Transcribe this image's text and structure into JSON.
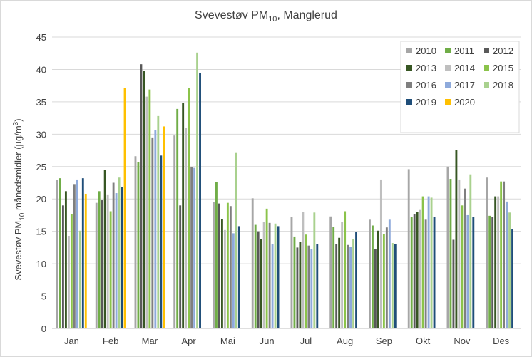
{
  "chart_data": {
    "type": "bar",
    "title": "Svevestøv PM",
    "title_sub": "10",
    "title_suffix": ", Manglerud",
    "ylabel": "Svevestøv PM",
    "ylabel_sub": "10",
    "ylabel_suffix": " månedsmidler (µg/m",
    "ylabel_sup": "3",
    "ylabel_end": ")",
    "xlabel": "",
    "ylim": [
      0,
      45
    ],
    "yticks": [
      0,
      5,
      10,
      15,
      20,
      25,
      30,
      35,
      40,
      45
    ],
    "grid": true,
    "legend_position": "top-right",
    "categories": [
      "Jan",
      "Feb",
      "Mar",
      "Apr",
      "Mai",
      "Jun",
      "Jul",
      "Aug",
      "Sep",
      "Okt",
      "Nov",
      "Des"
    ],
    "series": [
      {
        "name": "2010",
        "color": "#a6a6a6",
        "values": [
          22.9,
          19.4,
          26.6,
          29.8,
          19.5,
          20.1,
          17.2,
          17.3,
          16.8,
          24.6,
          25.0,
          23.3
        ]
      },
      {
        "name": "2011",
        "color": "#70ad47",
        "values": [
          23.2,
          21.2,
          25.7,
          33.9,
          22.6,
          16.0,
          14.2,
          15.7,
          15.9,
          17.2,
          23.1,
          17.4
        ]
      },
      {
        "name": "2012",
        "color": "#595959",
        "values": [
          19.0,
          19.8,
          40.8,
          19.0,
          19.3,
          15.0,
          12.5,
          13.0,
          12.3,
          17.6,
          13.7,
          17.2
        ]
      },
      {
        "name": "2013",
        "color": "#375623",
        "values": [
          21.2,
          24.5,
          39.8,
          34.8,
          16.9,
          13.8,
          13.4,
          14.0,
          15.1,
          18.0,
          27.6,
          20.4
        ]
      },
      {
        "name": "2014",
        "color": "#bfbfbf",
        "values": [
          14.3,
          20.7,
          35.8,
          31.0,
          15.2,
          16.4,
          18.0,
          16.4,
          23.0,
          18.3,
          23.0,
          20.4
        ]
      },
      {
        "name": "2015",
        "color": "#8bc34a",
        "values": [
          17.7,
          18.1,
          36.9,
          37.1,
          19.4,
          18.5,
          14.5,
          18.1,
          14.6,
          20.4,
          19.0,
          22.7
        ]
      },
      {
        "name": "2016",
        "color": "#7f7f7f",
        "values": [
          22.3,
          22.5,
          29.5,
          24.9,
          18.9,
          16.3,
          12.8,
          12.9,
          15.6,
          16.8,
          21.6,
          22.7
        ]
      },
      {
        "name": "2017",
        "color": "#8eaadb",
        "values": [
          23.0,
          20.9,
          30.6,
          24.8,
          14.7,
          13.0,
          12.3,
          12.6,
          16.8,
          20.4,
          17.5,
          19.6
        ]
      },
      {
        "name": "2018",
        "color": "#a9d18e",
        "values": [
          15.1,
          23.3,
          32.8,
          42.6,
          27.1,
          16.2,
          17.9,
          13.8,
          13.2,
          20.2,
          23.8,
          17.9
        ]
      },
      {
        "name": "2019",
        "color": "#1f4e79",
        "values": [
          23.2,
          21.8,
          26.7,
          39.5,
          15.8,
          15.8,
          13.0,
          14.9,
          13.0,
          17.2,
          17.2,
          15.4
        ]
      },
      {
        "name": "2020",
        "color": "#ffc000",
        "values": [
          20.8,
          37.1,
          31.2,
          null,
          null,
          null,
          null,
          null,
          null,
          null,
          null,
          null
        ]
      }
    ]
  }
}
